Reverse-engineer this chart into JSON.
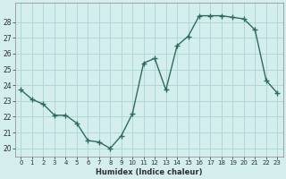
{
  "x": [
    0,
    1,
    2,
    3,
    4,
    5,
    6,
    7,
    8,
    9,
    10,
    11,
    12,
    13,
    14,
    15,
    16,
    17,
    18,
    19,
    20,
    21,
    22,
    23
  ],
  "y": [
    23.7,
    23.1,
    22.8,
    22.1,
    22.1,
    21.6,
    20.5,
    20.4,
    20.0,
    20.8,
    22.2,
    25.4,
    25.7,
    23.7,
    26.5,
    27.1,
    28.4,
    28.4,
    28.4,
    28.3,
    28.2,
    27.5,
    24.3,
    23.5
  ],
  "xlabel": "Humidex (Indice chaleur)",
  "xlim": [
    -0.5,
    23.5
  ],
  "ylim": [
    19.5,
    29.2
  ],
  "yticks": [
    20,
    21,
    22,
    23,
    24,
    25,
    26,
    27,
    28
  ],
  "xticks": [
    0,
    1,
    2,
    3,
    4,
    5,
    6,
    7,
    8,
    9,
    10,
    11,
    12,
    13,
    14,
    15,
    16,
    17,
    18,
    19,
    20,
    21,
    22,
    23
  ],
  "line_color": "#2e6b5e",
  "marker": "+",
  "marker_size": 4,
  "bg_color": "#d4eeee",
  "grid_color": "#b0d8d8",
  "line_width": 1.0
}
